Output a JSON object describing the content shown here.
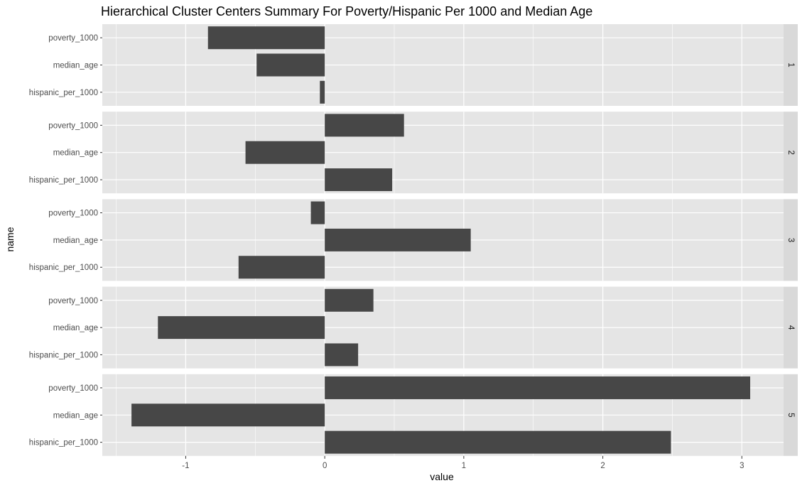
{
  "chart_data": {
    "type": "bar",
    "orientation": "horizontal",
    "title": "Hierarchical Cluster Centers Summary For Poverty/Hispanic Per 1000 and Median Age",
    "xlabel": "value",
    "ylabel": "name",
    "xlim": [
      -1.6,
      3.3
    ],
    "x_ticks": [
      -1,
      0,
      1,
      2,
      3
    ],
    "x_tick_labels": [
      "-1",
      "0",
      "1",
      "2",
      "3"
    ],
    "categories": [
      "poverty_1000",
      "median_age",
      "hispanic_per_1000"
    ],
    "grid": true,
    "colors": {
      "bar": "#474747",
      "panel": "#e5e5e5",
      "grid": "#ffffff",
      "strip": "#d9d9d9"
    },
    "facets": [
      {
        "label": "1",
        "values": {
          "poverty_1000": -0.84,
          "median_age": -0.49,
          "hispanic_per_1000": -0.035
        }
      },
      {
        "label": "2",
        "values": {
          "poverty_1000": 0.57,
          "median_age": -0.57,
          "hispanic_per_1000": 0.485
        }
      },
      {
        "label": "3",
        "values": {
          "poverty_1000": -0.1,
          "median_age": 1.05,
          "hispanic_per_1000": -0.62
        }
      },
      {
        "label": "4",
        "values": {
          "poverty_1000": 0.35,
          "median_age": -1.2,
          "hispanic_per_1000": 0.24
        }
      },
      {
        "label": "5",
        "values": {
          "poverty_1000": 3.06,
          "median_age": -1.39,
          "hispanic_per_1000": 2.49
        }
      }
    ]
  }
}
